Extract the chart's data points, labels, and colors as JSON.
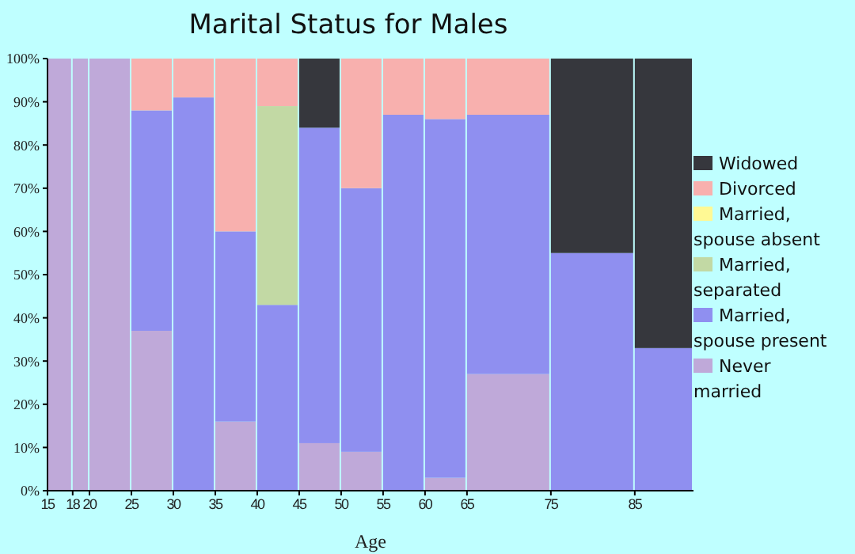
{
  "chart_data": {
    "type": "bar",
    "stacked": true,
    "title": "Marital Status for Males",
    "xlabel": "Age",
    "x": [
      16.5,
      19,
      22.5,
      27.5,
      32.5,
      37.5,
      42.5,
      47.5,
      52.5,
      57.5,
      62.5,
      70,
      80,
      88.5
    ],
    "xlim": [
      15,
      92
    ],
    "xticks": [
      15,
      18,
      20,
      25,
      30,
      35,
      40,
      45,
      50,
      55,
      60,
      65,
      75,
      85
    ],
    "ylim": [
      0,
      100
    ],
    "yticks": [
      {
        "value": 0,
        "label": "0%"
      },
      {
        "value": 10,
        "label": "10%"
      },
      {
        "value": 20,
        "label": "20%"
      },
      {
        "value": 30,
        "label": "30%"
      },
      {
        "value": 40,
        "label": "40%"
      },
      {
        "value": 50,
        "label": "50%"
      },
      {
        "value": 60,
        "label": "60%"
      },
      {
        "value": 70,
        "label": "70%"
      },
      {
        "value": 80,
        "label": "80%"
      },
      {
        "value": 90,
        "label": "90%"
      },
      {
        "value": 100,
        "label": "100%"
      }
    ],
    "grid": false,
    "legend": "right",
    "series": [
      {
        "name": "Never married",
        "color": "#bfa9d9",
        "values": [
          100,
          100,
          100,
          37,
          0,
          16,
          0,
          11,
          9,
          0,
          3,
          27,
          0,
          0
        ]
      },
      {
        "name": "Married, spouse present",
        "color": "#8f8ff0",
        "values": [
          0,
          0,
          0,
          51,
          91,
          44,
          43,
          73,
          61,
          87,
          83,
          60,
          55,
          33
        ]
      },
      {
        "name": "Married, separated",
        "color": "#c2d9a4",
        "values": [
          0,
          0,
          0,
          0,
          0,
          0,
          46,
          0,
          0,
          0,
          0,
          0,
          0,
          0
        ]
      },
      {
        "name": "Married, spouse absent",
        "color": "#fff994",
        "values": [
          0,
          0,
          0,
          0,
          0,
          0,
          0,
          0,
          0,
          0,
          0,
          0,
          0,
          0
        ]
      },
      {
        "name": "Divorced",
        "color": "#f8b0ae",
        "values": [
          0,
          0,
          0,
          12,
          9,
          40,
          11,
          0,
          30,
          13,
          14,
          13,
          0,
          0
        ]
      },
      {
        "name": "Widowed",
        "color": "#36373d",
        "values": [
          0,
          0,
          0,
          0,
          0,
          0,
          0,
          16,
          0,
          0,
          0,
          0,
          45,
          67
        ]
      }
    ]
  }
}
